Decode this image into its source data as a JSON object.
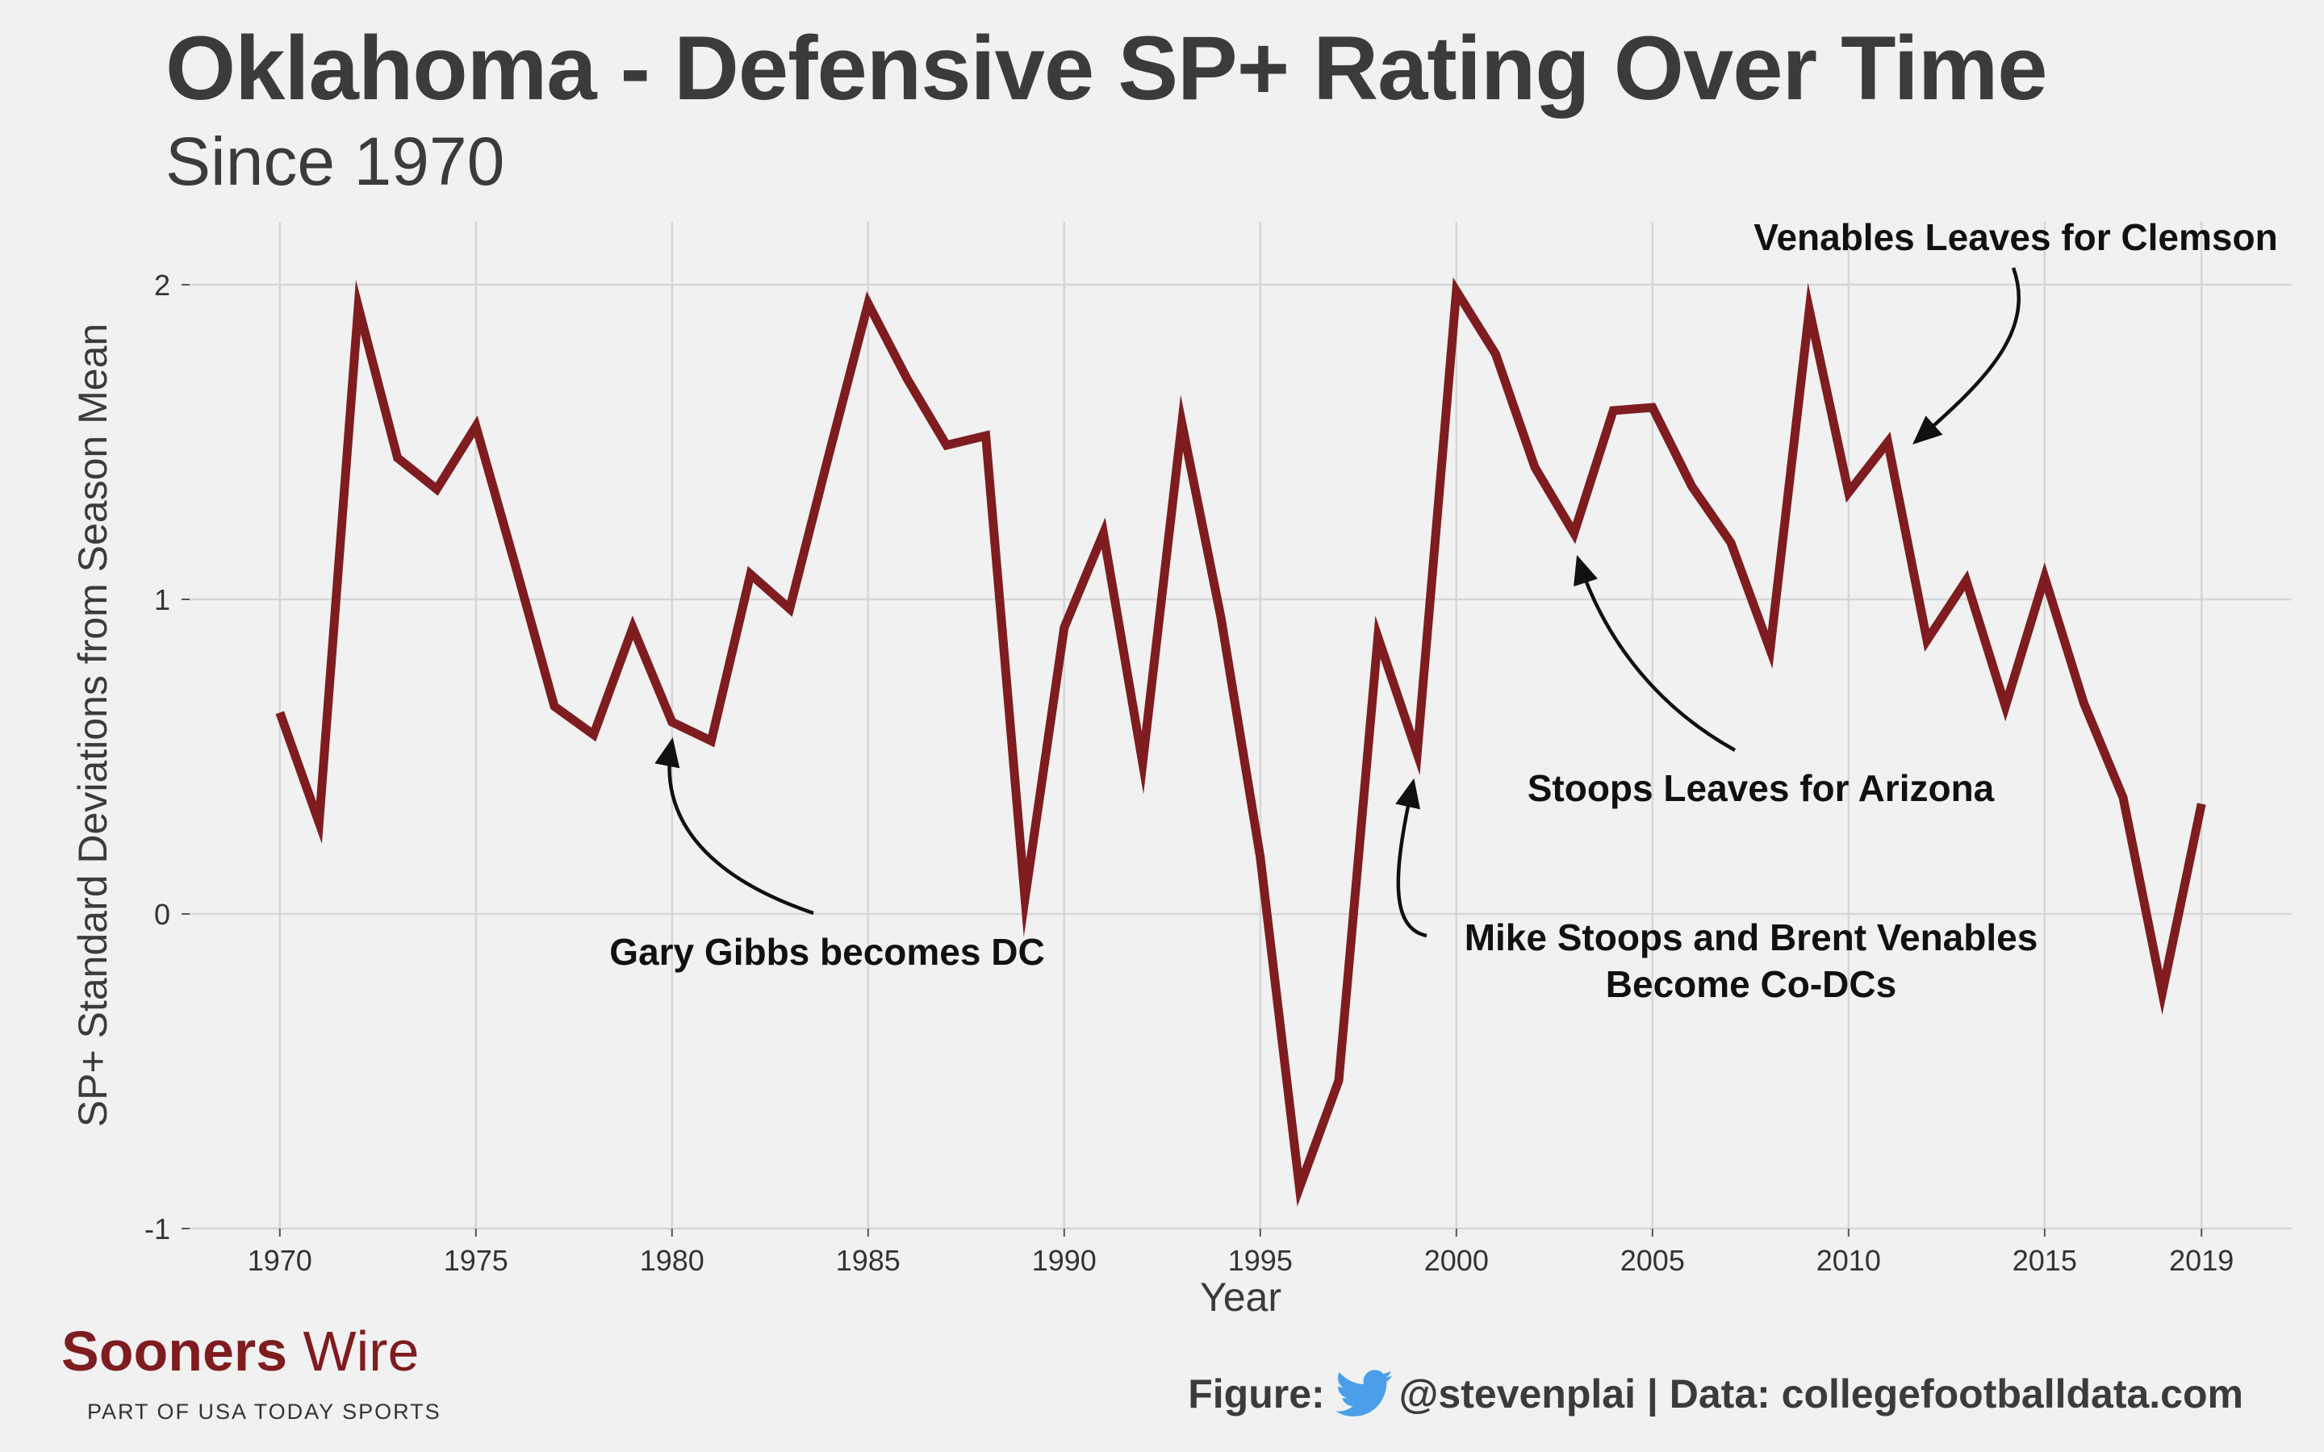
{
  "title": "Oklahoma - Defensive SP+ Rating Over Time",
  "subtitle": "Since 1970",
  "brand": {
    "name_bold": "Sooners",
    "name_light": " Wire",
    "tagline": "PART OF USA TODAY SPORTS"
  },
  "caption": {
    "figure_label": "Figure:",
    "handle_and_source": "@stevenplai | Data: collegefootballdata.com",
    "icon": "twitter-bird-icon"
  },
  "colors": {
    "line": "#7e1c20",
    "background": "#f1f1f1",
    "grid": "#d6d6d6",
    "text": "#3b3b3b",
    "twitter": "#4a9fe8"
  },
  "chart_data": {
    "type": "line",
    "title": "Oklahoma - Defensive SP+ Rating Over Time",
    "subtitle": "Since 1970",
    "xlabel": "Year",
    "ylabel": "SP+ Standard Deviations from Season Mean",
    "xlim": [
      1967.7,
      2021.3
    ],
    "ylim": [
      -1.0,
      2.2
    ],
    "xticks": [
      1970,
      1975,
      1980,
      1985,
      1990,
      1995,
      2000,
      2005,
      2010,
      2015,
      2019
    ],
    "yticks": [
      -1,
      0,
      1,
      2
    ],
    "ytick_labels": [
      "-1",
      "0",
      "1",
      "2"
    ],
    "grid": true,
    "series": [
      {
        "x": [
          1970,
          1971,
          1972,
          1973,
          1974,
          1975,
          1976,
          1977,
          1978,
          1979,
          1980,
          1981,
          1982,
          1983,
          1984,
          1985,
          1986,
          1987,
          1988,
          1989,
          1990,
          1991,
          1992,
          1993,
          1994,
          1995,
          1996,
          1997,
          1998,
          1999,
          2000,
          2001,
          2002,
          2003,
          2004,
          2005,
          2006,
          2007,
          2008,
          2009,
          2010,
          2011,
          2012,
          2013,
          2014,
          2015,
          2016,
          2017,
          2018,
          2019
        ],
        "y": [
          0.64,
          0.29,
          1.93,
          1.45,
          1.35,
          1.55,
          1.11,
          0.66,
          0.57,
          0.91,
          0.61,
          0.55,
          1.08,
          0.97,
          1.46,
          1.94,
          1.7,
          1.49,
          1.52,
          0.05,
          0.91,
          1.21,
          0.48,
          1.56,
          0.94,
          0.18,
          -0.87,
          -0.53,
          0.88,
          0.51,
          1.98,
          1.78,
          1.42,
          1.21,
          1.6,
          1.61,
          1.36,
          1.18,
          0.84,
          1.92,
          1.34,
          1.5,
          0.87,
          1.06,
          0.66,
          1.07,
          0.67,
          0.37,
          -0.25,
          0.35
        ]
      }
    ],
    "annotations": [
      {
        "text": "Gary Gibbs becomes DC",
        "point_year": 1980,
        "point_value": 0.55
      },
      {
        "text": "Mike Stoops and Brent Venables Become Co-DCs",
        "point_year": 1998.9,
        "point_value": 0.42
      },
      {
        "text": "Stoops Leaves for Arizona",
        "point_year": 2003.1,
        "point_value": 1.13
      },
      {
        "text": "Venables Leaves for Clemson",
        "point_year": 2011.7,
        "point_value": 1.5
      }
    ]
  }
}
